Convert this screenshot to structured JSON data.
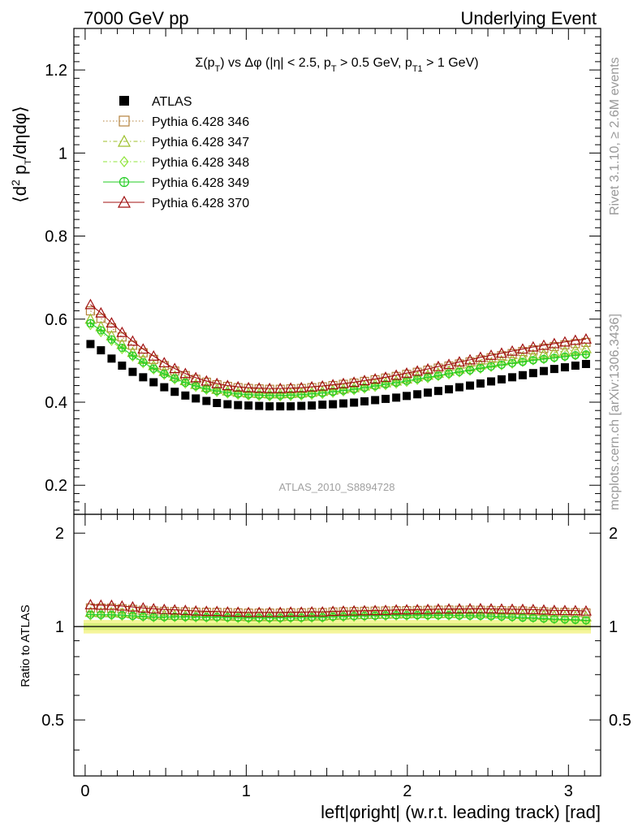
{
  "header": {
    "left": "7000 GeV pp",
    "right": "Underlying Event"
  },
  "side_labels": {
    "rivet": "Rivet 3.1.10, ≥ 2.6M events",
    "mcplots": "mcplots.cern.ch [arXiv:1306.3436]"
  },
  "colors": {
    "atlas": "#000000",
    "p346": "#b5833e",
    "p347": "#9cbf2a",
    "p348": "#8fe43a",
    "p349": "#22cc22",
    "p370": "#a01010",
    "band_outer": "#f5f59a",
    "band_inner": "#d8ef7a"
  },
  "chart_data": [
    {
      "type": "scatter",
      "title": "Σ(p_T) vs Δφ (|η| < 2.5, p_T > 0.5 GeV, p_T1 > 1 GeV)",
      "ylabel": "⟨d² p_T/dηdφ⟩",
      "xlabel": "left|φright| (w.r.t. leading track) [rad]",
      "watermark": "ATLAS_2010_S8894728",
      "xlim": [
        -0.07,
        3.2
      ],
      "ylim": [
        0.13,
        1.3
      ],
      "yticks": [
        0.2,
        0.4,
        0.6,
        0.8,
        1,
        1.2
      ],
      "ytick_labels": [
        "0.2",
        "0.4",
        "0.6",
        "0.8",
        "1",
        "1.2"
      ],
      "legend_position": "top-left",
      "x": [
        0.033,
        0.098,
        0.164,
        0.229,
        0.295,
        0.36,
        0.425,
        0.491,
        0.556,
        0.622,
        0.687,
        0.753,
        0.818,
        0.884,
        0.949,
        1.014,
        1.08,
        1.145,
        1.211,
        1.276,
        1.342,
        1.407,
        1.473,
        1.538,
        1.603,
        1.669,
        1.734,
        1.8,
        1.865,
        1.931,
        1.996,
        2.062,
        2.127,
        2.192,
        2.258,
        2.323,
        2.389,
        2.454,
        2.52,
        2.585,
        2.651,
        2.716,
        2.781,
        2.847,
        2.912,
        2.978,
        3.043,
        3.109
      ],
      "series": [
        {
          "name": "ATLAS",
          "marker": "square-filled",
          "values": [
            0.54,
            0.525,
            0.505,
            0.488,
            0.473,
            0.46,
            0.448,
            0.436,
            0.425,
            0.416,
            0.409,
            0.403,
            0.398,
            0.395,
            0.393,
            0.392,
            0.391,
            0.39,
            0.39,
            0.39,
            0.391,
            0.392,
            0.394,
            0.395,
            0.397,
            0.399,
            0.402,
            0.405,
            0.408,
            0.411,
            0.415,
            0.419,
            0.423,
            0.427,
            0.431,
            0.436,
            0.44,
            0.445,
            0.45,
            0.455,
            0.46,
            0.465,
            0.47,
            0.475,
            0.48,
            0.484,
            0.488,
            0.492
          ]
        },
        {
          "name": "Pythia 6.428 346",
          "marker": "square-open",
          "line": "dotted",
          "values": [
            0.62,
            0.602,
            0.579,
            0.557,
            0.537,
            0.519,
            0.503,
            0.488,
            0.475,
            0.464,
            0.455,
            0.448,
            0.442,
            0.438,
            0.435,
            0.433,
            0.432,
            0.431,
            0.431,
            0.432,
            0.433,
            0.435,
            0.437,
            0.44,
            0.443,
            0.446,
            0.45,
            0.454,
            0.458,
            0.462,
            0.467,
            0.472,
            0.477,
            0.482,
            0.487,
            0.492,
            0.497,
            0.502,
            0.507,
            0.512,
            0.517,
            0.522,
            0.526,
            0.53,
            0.534,
            0.538,
            0.541,
            0.544
          ]
        },
        {
          "name": "Pythia 6.428 347",
          "marker": "triangle-open",
          "line": "dashdot",
          "values": [
            0.6,
            0.582,
            0.56,
            0.539,
            0.52,
            0.503,
            0.488,
            0.474,
            0.462,
            0.452,
            0.443,
            0.436,
            0.431,
            0.427,
            0.424,
            0.422,
            0.421,
            0.42,
            0.42,
            0.421,
            0.422,
            0.424,
            0.426,
            0.429,
            0.432,
            0.435,
            0.439,
            0.443,
            0.447,
            0.451,
            0.456,
            0.461,
            0.465,
            0.47,
            0.475,
            0.48,
            0.485,
            0.49,
            0.494,
            0.499,
            0.503,
            0.508,
            0.512,
            0.516,
            0.52,
            0.523,
            0.526,
            0.529
          ]
        },
        {
          "name": "Pythia 6.428 348",
          "marker": "diamond-open",
          "line": "dashdot",
          "values": [
            0.585,
            0.568,
            0.547,
            0.527,
            0.509,
            0.493,
            0.478,
            0.465,
            0.454,
            0.444,
            0.436,
            0.429,
            0.424,
            0.42,
            0.417,
            0.415,
            0.414,
            0.413,
            0.413,
            0.414,
            0.415,
            0.417,
            0.419,
            0.422,
            0.425,
            0.428,
            0.432,
            0.436,
            0.44,
            0.444,
            0.448,
            0.453,
            0.457,
            0.462,
            0.466,
            0.471,
            0.475,
            0.48,
            0.484,
            0.488,
            0.492,
            0.496,
            0.5,
            0.503,
            0.506,
            0.509,
            0.512,
            0.514
          ]
        },
        {
          "name": "Pythia 6.428 349",
          "marker": "cross-circle",
          "line": "solid",
          "values": [
            0.59,
            0.573,
            0.551,
            0.531,
            0.512,
            0.496,
            0.481,
            0.468,
            0.457,
            0.447,
            0.439,
            0.432,
            0.427,
            0.423,
            0.42,
            0.418,
            0.417,
            0.416,
            0.416,
            0.417,
            0.418,
            0.42,
            0.422,
            0.425,
            0.428,
            0.431,
            0.435,
            0.439,
            0.443,
            0.447,
            0.451,
            0.456,
            0.46,
            0.464,
            0.469,
            0.473,
            0.477,
            0.482,
            0.486,
            0.49,
            0.494,
            0.497,
            0.501,
            0.504,
            0.507,
            0.51,
            0.513,
            0.515
          ]
        },
        {
          "name": "Pythia 6.428 370",
          "marker": "triangle-open",
          "line": "solid",
          "values": [
            0.635,
            0.615,
            0.591,
            0.568,
            0.547,
            0.528,
            0.511,
            0.495,
            0.481,
            0.469,
            0.459,
            0.451,
            0.445,
            0.44,
            0.437,
            0.435,
            0.434,
            0.433,
            0.433,
            0.434,
            0.435,
            0.437,
            0.439,
            0.442,
            0.445,
            0.448,
            0.452,
            0.456,
            0.46,
            0.465,
            0.47,
            0.475,
            0.48,
            0.486,
            0.491,
            0.497,
            0.502,
            0.508,
            0.513,
            0.518,
            0.523,
            0.528,
            0.533,
            0.537,
            0.541,
            0.545,
            0.549,
            0.552
          ]
        }
      ]
    },
    {
      "type": "scatter",
      "ylabel": "Ratio to ATLAS",
      "xlabel": "left|φright| (w.r.t. leading track) [rad]",
      "xlim": [
        -0.07,
        3.2
      ],
      "ylim": [
        0.33,
        2.3
      ],
      "yticks": [
        0.5,
        1,
        2
      ],
      "ytick_labels": [
        "0.5",
        "1",
        "2"
      ],
      "xticks": [
        0,
        1,
        2,
        3
      ],
      "xtick_labels": [
        "0",
        "1",
        "2",
        "3"
      ],
      "band": {
        "outer": [
          0.95,
          1.05
        ],
        "inner": [
          0.975,
          1.025
        ]
      },
      "reference": 1
    }
  ]
}
